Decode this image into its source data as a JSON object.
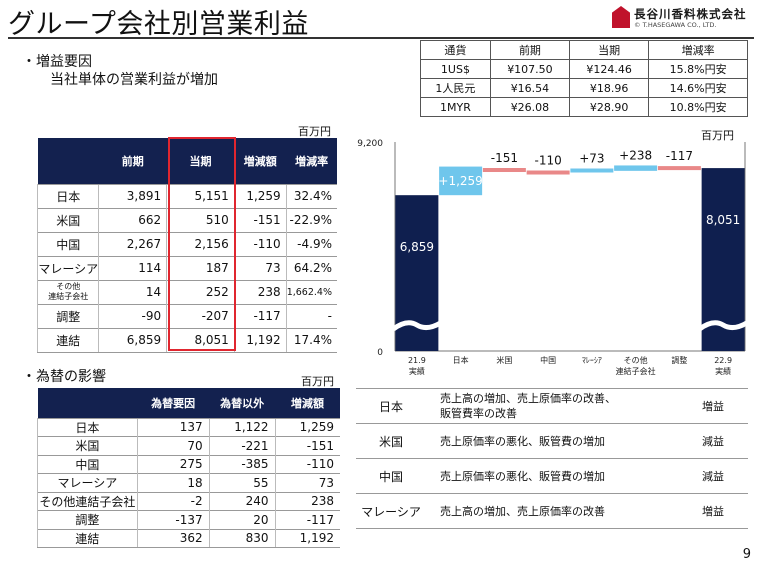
{
  "title": "グループ会社別営業利益",
  "logo": {
    "main": "長谷川香料株式会社",
    "sub": "© T.HASEGAWA CO., LTD."
  },
  "summary": {
    "bullet": "・増益要因",
    "line": "当社単体の営業利益が増加"
  },
  "fx_rates": {
    "headers": [
      "通貨",
      "前期",
      "当期",
      "増減率"
    ],
    "rows": [
      [
        "1US$",
        "¥107.50",
        "¥124.46",
        "15.8%円安"
      ],
      [
        "1人民元",
        "¥16.54",
        "¥18.96",
        "14.6%円安"
      ],
      [
        "1MYR",
        "¥26.08",
        "¥28.90",
        "10.8%円安"
      ]
    ]
  },
  "main_table": {
    "unit": "百万円",
    "headers": [
      "",
      "前期",
      "当期",
      "増減額",
      "増減率"
    ],
    "rows": [
      [
        "日本",
        "3,891",
        "5,151",
        "1,259",
        "32.4%"
      ],
      [
        "米国",
        "662",
        "510",
        "-151",
        "-22.9%"
      ],
      [
        "中国",
        "2,267",
        "2,156",
        "-110",
        "-4.9%"
      ],
      [
        "マレーシア",
        "114",
        "187",
        "73",
        "64.2%"
      ],
      [
        "その他\n連結子会社",
        "14",
        "252",
        "238",
        "1,662.4%"
      ],
      [
        "調整",
        "-90",
        "-207",
        "-117",
        "-"
      ],
      [
        "連結",
        "6,859",
        "8,051",
        "1,192",
        "17.4%"
      ]
    ]
  },
  "fx_effect": {
    "bullet": "・為替の影響",
    "unit": "百万円",
    "headers": [
      "",
      "為替要因",
      "為替以外",
      "増減額"
    ],
    "rows": [
      [
        "日本",
        "137",
        "1,122",
        "1,259"
      ],
      [
        "米国",
        "70",
        "-221",
        "-151"
      ],
      [
        "中国",
        "275",
        "-385",
        "-110"
      ],
      [
        "マレーシア",
        "18",
        "55",
        "73"
      ],
      [
        "その他連結子会社",
        "-2",
        "240",
        "238"
      ],
      [
        "調整",
        "-137",
        "20",
        "-117"
      ],
      [
        "連結",
        "362",
        "830",
        "1,192"
      ]
    ]
  },
  "reasons": [
    {
      "region": "日本",
      "text": "売上高の増加、売上原価率の改善、\n販管費率の改善",
      "result": "増益"
    },
    {
      "region": "米国",
      "text": "売上原価率の悪化、販管費の増加",
      "result": "減益"
    },
    {
      "region": "中国",
      "text": "売上原価率の悪化、販管費の増加",
      "result": "減益"
    },
    {
      "region": "マレーシア",
      "text": "売上高の増加、売上原価率の改善",
      "result": "増益"
    }
  ],
  "chart_data": {
    "type": "bar",
    "subtype": "waterfall",
    "unit": "百万円",
    "ylim": [
      0,
      9200
    ],
    "yticks": [
      "0",
      "9,200"
    ],
    "categories": [
      "21.9\n実績",
      "日本",
      "米国",
      "中国",
      "ﾏﾚｰｼｱ",
      "その他\n連結子会社",
      "調整",
      "22.9\n実績"
    ],
    "values": [
      6859,
      1259,
      -151,
      -110,
      73,
      238,
      -117,
      8051
    ],
    "labels": [
      "6,859",
      "+1,259",
      "-151",
      "-110",
      "+73",
      "+238",
      "-117",
      "8,051"
    ],
    "colors": {
      "total": "#0f1f4f",
      "up": "#6fc6ec",
      "down": "#e98888"
    }
  },
  "page_number": "9"
}
